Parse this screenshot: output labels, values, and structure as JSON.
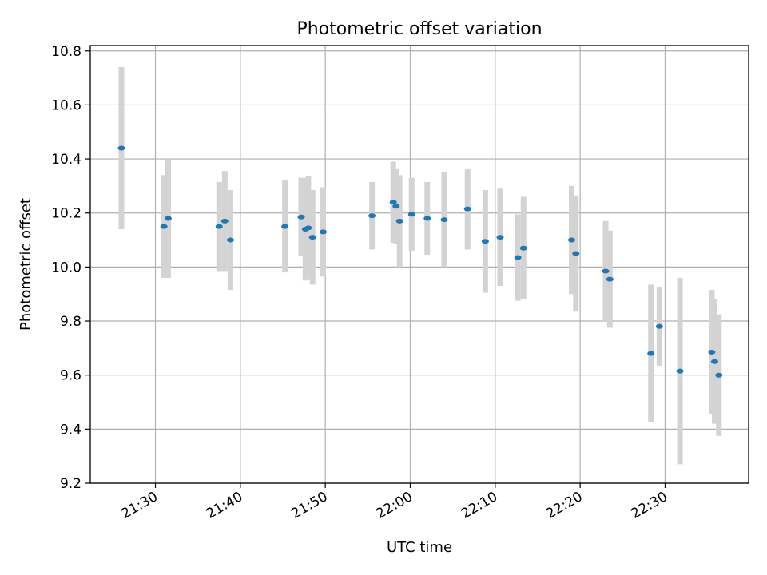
{
  "chart_data": {
    "type": "scatter",
    "title": "Photometric offset variation",
    "xlabel": "UTC time",
    "ylabel": "Photometric offset",
    "ylim": [
      9.2,
      10.82
    ],
    "xlim": [
      "21:22:20",
      "22:39:50"
    ],
    "grid": true,
    "x_tick_labels": [
      "21:30",
      "21:40",
      "21:50",
      "22:00",
      "22:10",
      "22:20",
      "22:30"
    ],
    "y_tick_labels": [
      "9.2",
      "9.4",
      "9.6",
      "9.8",
      "10.0",
      "10.2",
      "10.4",
      "10.6",
      "10.8"
    ],
    "y_ticks": [
      9.2,
      9.4,
      9.6,
      9.8,
      10.0,
      10.2,
      10.4,
      10.6,
      10.8
    ],
    "series": [
      {
        "marker_color": "#1f77b4",
        "errorbar_color": "#d3d3d3",
        "points": [
          {
            "x": "21:26:00",
            "y": 10.44,
            "yerr": 0.3
          },
          {
            "x": "21:31:00",
            "y": 10.15,
            "yerr": 0.19
          },
          {
            "x": "21:31:30",
            "y": 10.18,
            "yerr": 0.22
          },
          {
            "x": "21:37:30",
            "y": 10.15,
            "yerr": 0.165
          },
          {
            "x": "21:38:10",
            "y": 10.17,
            "yerr": 0.185
          },
          {
            "x": "21:38:50",
            "y": 10.1,
            "yerr": 0.185
          },
          {
            "x": "21:45:15",
            "y": 10.15,
            "yerr": 0.17
          },
          {
            "x": "21:47:10",
            "y": 10.185,
            "yerr": 0.145
          },
          {
            "x": "21:47:40",
            "y": 10.14,
            "yerr": 0.19
          },
          {
            "x": "21:48:00",
            "y": 10.145,
            "yerr": 0.19
          },
          {
            "x": "21:48:30",
            "y": 10.11,
            "yerr": 0.175
          },
          {
            "x": "21:49:45",
            "y": 10.13,
            "yerr": 0.165
          },
          {
            "x": "21:55:30",
            "y": 10.19,
            "yerr": 0.125
          },
          {
            "x": "21:58:00",
            "y": 10.24,
            "yerr": 0.15
          },
          {
            "x": "21:58:20",
            "y": 10.225,
            "yerr": 0.14
          },
          {
            "x": "21:58:45",
            "y": 10.17,
            "yerr": 0.17
          },
          {
            "x": "22:00:10",
            "y": 10.195,
            "yerr": 0.135
          },
          {
            "x": "22:02:00",
            "y": 10.18,
            "yerr": 0.135
          },
          {
            "x": "22:04:00",
            "y": 10.175,
            "yerr": 0.175
          },
          {
            "x": "22:06:45",
            "y": 10.215,
            "yerr": 0.15
          },
          {
            "x": "22:08:50",
            "y": 10.095,
            "yerr": 0.19
          },
          {
            "x": "22:10:35",
            "y": 10.11,
            "yerr": 0.18
          },
          {
            "x": "22:12:40",
            "y": 10.035,
            "yerr": 0.16
          },
          {
            "x": "22:13:20",
            "y": 10.07,
            "yerr": 0.19
          },
          {
            "x": "22:19:00",
            "y": 10.1,
            "yerr": 0.2
          },
          {
            "x": "22:19:30",
            "y": 10.05,
            "yerr": 0.215
          },
          {
            "x": "22:23:00",
            "y": 9.985,
            "yerr": 0.185
          },
          {
            "x": "22:23:30",
            "y": 9.955,
            "yerr": 0.18
          },
          {
            "x": "22:28:20",
            "y": 9.68,
            "yerr": 0.255
          },
          {
            "x": "22:29:20",
            "y": 9.78,
            "yerr": 0.145
          },
          {
            "x": "22:31:45",
            "y": 9.615,
            "yerr": 0.345
          },
          {
            "x": "22:35:30",
            "y": 9.685,
            "yerr": 0.23
          },
          {
            "x": "22:35:50",
            "y": 9.65,
            "yerr": 0.23
          },
          {
            "x": "22:36:20",
            "y": 9.6,
            "yerr": 0.225
          }
        ]
      }
    ]
  }
}
